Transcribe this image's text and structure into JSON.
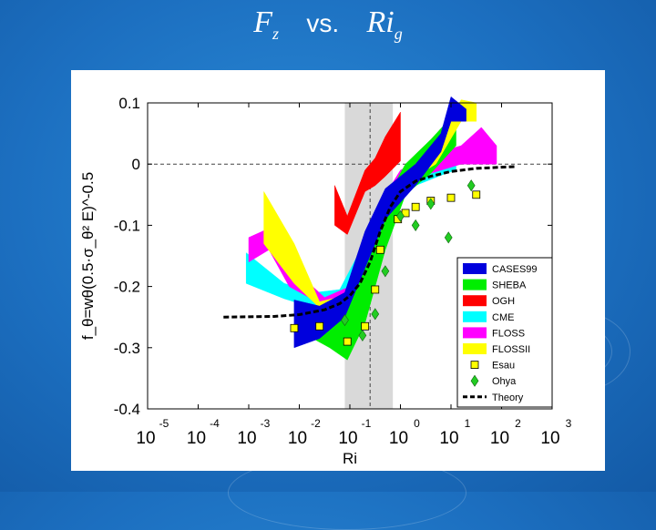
{
  "slide": {
    "title_lhs_base": "F",
    "title_lhs_sub": "z",
    "title_vs": "vs.",
    "title_rhs_base": "Ri",
    "title_rhs_sub": "g"
  },
  "colors": {
    "CASES99": "#0000dd",
    "SHEBA": "#00ee00",
    "OGH": "#ff0000",
    "CME": "#00ffff",
    "FLOSS": "#ff00ff",
    "FLOSSII": "#ffff00",
    "Esau": "#ffff00",
    "Ohya": "#22cc22",
    "Theory": "#000000",
    "shade": "#d9d9d9"
  },
  "chart_data": {
    "type": "area",
    "xscale": "log",
    "xlabel": "Ri",
    "ylabel": "f_θ=wθ(0.5·σ_θ² E)^-0.5",
    "xlim_log10": [
      -5,
      3
    ],
    "ylim": [
      -0.4,
      0.1
    ],
    "x_ticks": [
      {
        "log": -5,
        "base": "10",
        "exp": "-5"
      },
      {
        "log": -4,
        "base": "10",
        "exp": "-4"
      },
      {
        "log": -3,
        "base": "10",
        "exp": "-3"
      },
      {
        "log": -2,
        "base": "10",
        "exp": "-2"
      },
      {
        "log": -1,
        "base": "10",
        "exp": "-1"
      },
      {
        "log": 0,
        "base": "10",
        "exp": "0"
      },
      {
        "log": 1,
        "base": "10",
        "exp": "1"
      },
      {
        "log": 2,
        "base": "10",
        "exp": "2"
      },
      {
        "log": 3,
        "base": "10",
        "exp": "3"
      }
    ],
    "y_ticks": [
      {
        "v": 0.1,
        "label": "0.1"
      },
      {
        "v": 0,
        "label": "0"
      },
      {
        "v": -0.1,
        "label": "-0.1"
      },
      {
        "v": -0.2,
        "label": "-0.2"
      },
      {
        "v": -0.3,
        "label": "-0.3"
      },
      {
        "v": -0.4,
        "label": "-0.4"
      }
    ],
    "shaded_region_log10": [
      -1.1,
      -0.15
    ],
    "vline_log10": -0.6,
    "hline_y": 0,
    "bands": [
      {
        "name": "CASES99",
        "color": "#0000dd",
        "upper": [
          [
            -2.1,
            -0.222
          ],
          [
            -1.6,
            -0.232
          ],
          [
            -1.1,
            -0.21
          ],
          [
            -0.7,
            -0.11
          ],
          [
            -0.3,
            -0.04
          ],
          [
            0.3,
            0.0
          ],
          [
            0.8,
            0.05
          ],
          [
            1.0,
            0.11
          ],
          [
            1.3,
            0.09
          ]
        ],
        "lower": [
          [
            -2.1,
            -0.3
          ],
          [
            -1.6,
            -0.285
          ],
          [
            -1.1,
            -0.25
          ],
          [
            -0.7,
            -0.17
          ],
          [
            -0.3,
            -0.09
          ],
          [
            0.3,
            -0.035
          ],
          [
            0.8,
            0.02
          ],
          [
            1.0,
            0.07
          ],
          [
            1.3,
            0.07
          ]
        ]
      },
      {
        "name": "SHEBA",
        "color": "#00ee00",
        "upper": [
          [
            -1.95,
            -0.255
          ],
          [
            -1.4,
            -0.27
          ],
          [
            -1.05,
            -0.24
          ],
          [
            -0.7,
            -0.165
          ],
          [
            -0.3,
            -0.06
          ],
          [
            0.1,
            0.0
          ],
          [
            0.6,
            0.04
          ],
          [
            1.1,
            0.085
          ]
        ],
        "lower": [
          [
            -1.95,
            -0.275
          ],
          [
            -1.4,
            -0.3
          ],
          [
            -1.05,
            -0.32
          ],
          [
            -0.7,
            -0.26
          ],
          [
            -0.3,
            -0.14
          ],
          [
            0.1,
            -0.05
          ],
          [
            0.6,
            -0.015
          ],
          [
            1.1,
            0.03
          ]
        ]
      },
      {
        "name": "OGH",
        "color": "#ff0000",
        "upper": [
          [
            -1.3,
            -0.035
          ],
          [
            -1.05,
            -0.085
          ],
          [
            -0.7,
            -0.01
          ],
          [
            -0.5,
            0.01
          ],
          [
            -0.3,
            0.045
          ],
          [
            0.0,
            0.085
          ]
        ],
        "lower": [
          [
            -1.3,
            -0.1
          ],
          [
            -1.05,
            -0.115
          ],
          [
            -0.7,
            -0.045
          ],
          [
            -0.5,
            -0.035
          ],
          [
            -0.3,
            -0.02
          ],
          [
            0.0,
            0.005
          ]
        ]
      },
      {
        "name": "CME",
        "color": "#00ffff",
        "upper": [
          [
            -3.05,
            -0.145
          ],
          [
            -2.3,
            -0.195
          ],
          [
            -1.7,
            -0.21
          ],
          [
            -1.2,
            -0.205
          ],
          [
            -0.6,
            -0.11
          ],
          [
            -0.3,
            -0.045
          ],
          [
            0.3,
            -0.01
          ],
          [
            0.9,
            0.0
          ],
          [
            1.1,
            0.005
          ]
        ],
        "lower": [
          [
            -3.05,
            -0.195
          ],
          [
            -2.3,
            -0.22
          ],
          [
            -1.7,
            -0.235
          ],
          [
            -1.2,
            -0.22
          ],
          [
            -0.6,
            -0.15
          ],
          [
            -0.3,
            -0.075
          ],
          [
            0.3,
            -0.035
          ],
          [
            0.9,
            -0.015
          ],
          [
            1.1,
            -0.01
          ]
        ]
      },
      {
        "name": "FLOSS",
        "color": "#ff00ff",
        "upper": [
          [
            -3.0,
            -0.12
          ],
          [
            -2.6,
            -0.105
          ],
          [
            -2.2,
            -0.165
          ],
          [
            -1.5,
            -0.218
          ],
          [
            -1.0,
            -0.2
          ],
          [
            -0.6,
            -0.12
          ],
          [
            -0.3,
            -0.05
          ],
          [
            0.0,
            -0.01
          ],
          [
            0.6,
            0.015
          ],
          [
            1.2,
            0.03
          ],
          [
            1.6,
            0.06
          ],
          [
            1.9,
            0.03
          ]
        ],
        "lower": [
          [
            -3.0,
            -0.16
          ],
          [
            -2.6,
            -0.14
          ],
          [
            -2.2,
            -0.2
          ],
          [
            -1.5,
            -0.232
          ],
          [
            -1.0,
            -0.215
          ],
          [
            -0.6,
            -0.145
          ],
          [
            -0.3,
            -0.07
          ],
          [
            0.0,
            -0.03
          ],
          [
            0.6,
            -0.015
          ],
          [
            1.2,
            0.0
          ],
          [
            1.6,
            0.0
          ],
          [
            1.9,
            0.0
          ]
        ]
      },
      {
        "name": "FLOSSII",
        "color": "#ffff00",
        "upper": [
          [
            -2.7,
            -0.045
          ],
          [
            -2.1,
            -0.13
          ],
          [
            -1.6,
            -0.225
          ],
          [
            -1.1,
            -0.215
          ],
          [
            -0.6,
            -0.12
          ],
          [
            -0.3,
            -0.05
          ],
          [
            0.3,
            0.0
          ],
          [
            0.7,
            0.03
          ],
          [
            1.2,
            0.105
          ],
          [
            1.5,
            0.1
          ]
        ],
        "lower": [
          [
            -2.7,
            -0.13
          ],
          [
            -2.1,
            -0.195
          ],
          [
            -1.6,
            -0.235
          ],
          [
            -1.1,
            -0.23
          ],
          [
            -0.6,
            -0.15
          ],
          [
            -0.3,
            -0.065
          ],
          [
            0.3,
            -0.02
          ],
          [
            0.7,
            0.0
          ],
          [
            1.2,
            0.07
          ],
          [
            1.5,
            0.07
          ]
        ]
      }
    ],
    "esau_points": [
      [
        -2.1,
        -0.268
      ],
      [
        -1.6,
        -0.265
      ],
      [
        -1.05,
        -0.29
      ],
      [
        -0.7,
        -0.265
      ],
      [
        -0.5,
        -0.205
      ],
      [
        -0.4,
        -0.14
      ],
      [
        -0.05,
        -0.09
      ],
      [
        0.1,
        -0.08
      ],
      [
        0.3,
        -0.07
      ],
      [
        0.6,
        -0.06
      ],
      [
        1.0,
        -0.055
      ],
      [
        1.5,
        -0.05
      ]
    ],
    "ohya_points": [
      [
        -1.1,
        -0.255
      ],
      [
        -0.75,
        -0.28
      ],
      [
        -0.5,
        -0.245
      ],
      [
        -0.3,
        -0.175
      ],
      [
        0.0,
        -0.085
      ],
      [
        0.3,
        -0.1
      ],
      [
        0.6,
        -0.065
      ],
      [
        0.95,
        -0.12
      ],
      [
        1.4,
        -0.035
      ]
    ],
    "theory_line": [
      [
        -3.5,
        -0.25
      ],
      [
        -2.5,
        -0.249
      ],
      [
        -2.0,
        -0.246
      ],
      [
        -1.5,
        -0.238
      ],
      [
        -1.2,
        -0.228
      ],
      [
        -1.0,
        -0.215
      ],
      [
        -0.8,
        -0.195
      ],
      [
        -0.6,
        -0.16
      ],
      [
        -0.4,
        -0.11
      ],
      [
        -0.2,
        -0.07
      ],
      [
        0.0,
        -0.045
      ],
      [
        0.3,
        -0.028
      ],
      [
        0.6,
        -0.02
      ],
      [
        1.0,
        -0.012
      ],
      [
        1.5,
        -0.007
      ],
      [
        2.0,
        -0.005
      ],
      [
        2.3,
        -0.004
      ]
    ],
    "legend": {
      "placement": "lower-right",
      "entries": [
        {
          "label": "CASES99",
          "kind": "patch",
          "color": "#0000dd"
        },
        {
          "label": "SHEBA",
          "kind": "patch",
          "color": "#00ee00"
        },
        {
          "label": "OGH",
          "kind": "patch",
          "color": "#ff0000"
        },
        {
          "label": "CME",
          "kind": "patch",
          "color": "#00ffff"
        },
        {
          "label": "FLOSS",
          "kind": "patch",
          "color": "#ff00ff"
        },
        {
          "label": "FLOSSII",
          "kind": "patch",
          "color": "#ffff00"
        },
        {
          "label": "Esau",
          "kind": "square",
          "color": "#ffff00"
        },
        {
          "label": "Ohya",
          "kind": "diamond",
          "color": "#22cc22"
        },
        {
          "label": "Theory",
          "kind": "dashed",
          "color": "#000000"
        }
      ]
    }
  }
}
